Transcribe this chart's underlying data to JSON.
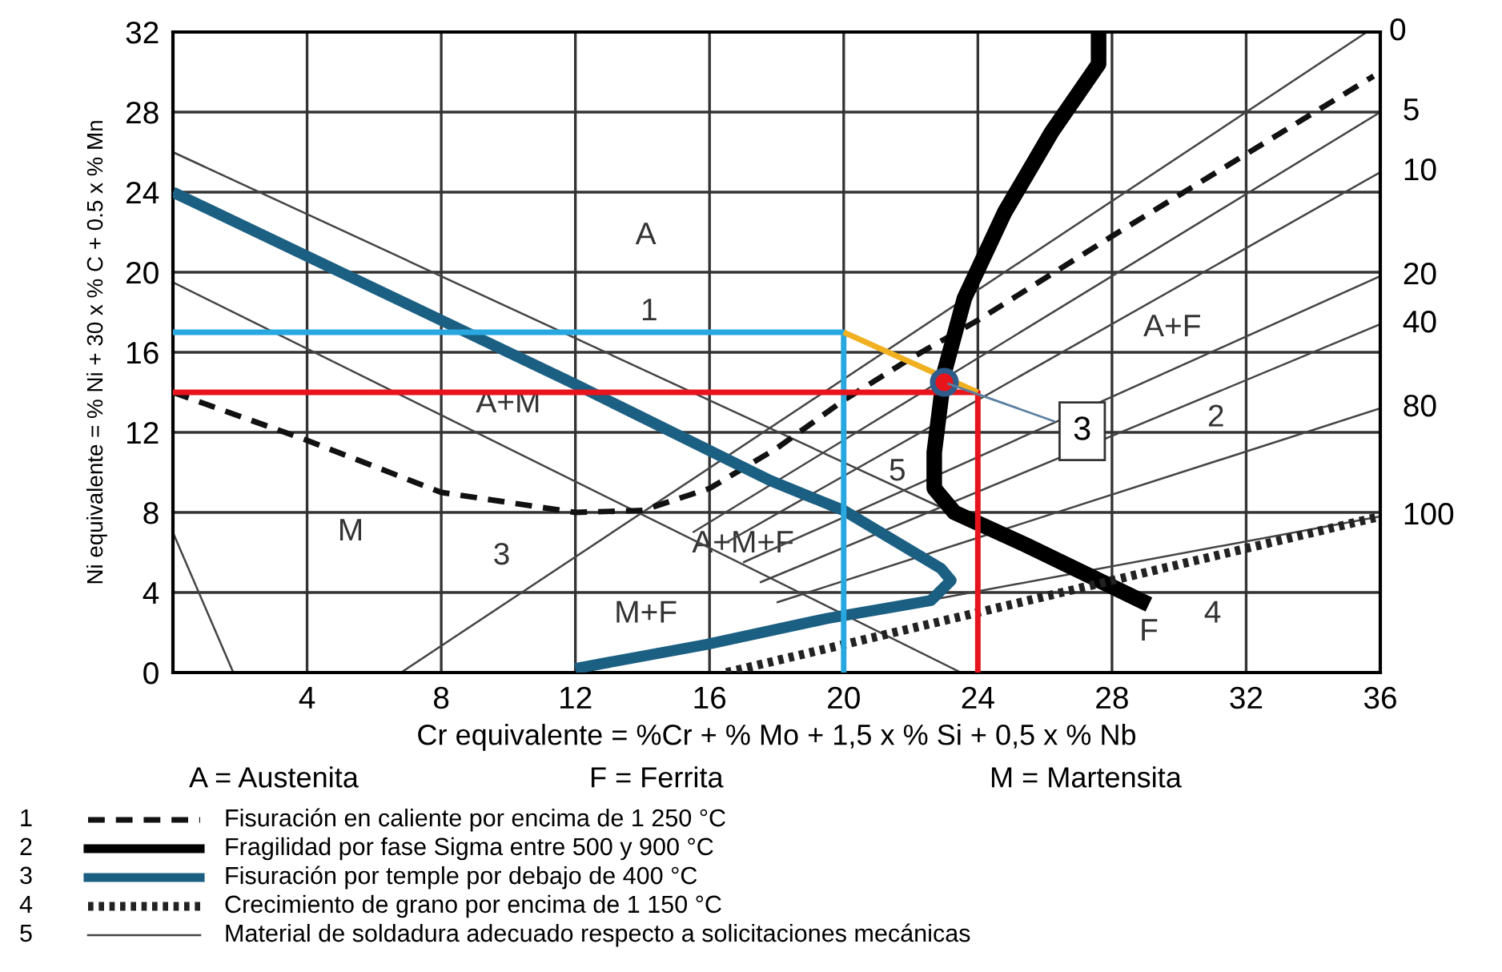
{
  "chart_data": {
    "type": "line",
    "xlabel": "Cr equivalente = %Cr + % Mo + 1,5 x % Si + 0,5 x % Nb",
    "ylabel": "Ni equivalente = % Ni + 30 x % C + 0.5 x % Mn",
    "xlim": [
      0,
      36
    ],
    "ylim": [
      0,
      32
    ],
    "xticks": [
      {
        "value": 0,
        "label": null
      },
      4,
      8,
      12,
      16,
      20,
      24,
      28,
      32,
      36
    ],
    "yticks": [
      0,
      4,
      8,
      12,
      16,
      20,
      24,
      28,
      32
    ],
    "grid": true,
    "legend": "bottom",
    "series": [
      {
        "name": "Fisuración en caliente por encima de 1 250 °C",
        "color": "#111111",
        "line_style": "dashed",
        "x": [
          0,
          4,
          8,
          12,
          14,
          16,
          18,
          20,
          22,
          24,
          28,
          32,
          35.8
        ],
        "values": [
          14,
          11.6,
          9,
          8,
          8.1,
          9.2,
          11.2,
          13.6,
          15.7,
          17.6,
          21.8,
          25.9,
          29.8
        ]
      },
      {
        "name": "Fragilidad por fase Sigma entre 500 y 900 °C",
        "color": "#000000",
        "line_style": "solid",
        "x": [
          27.6,
          27.6,
          26.2,
          24.8,
          23.6,
          23,
          22.7,
          22.7,
          23.3,
          25.4,
          29.1
        ],
        "values": [
          32,
          30.4,
          27,
          23,
          18.7,
          15,
          11,
          9.2,
          8,
          6.4,
          3.4
        ]
      },
      {
        "name": "Fisuración por temple por debajo de 400 °C",
        "color": "#1b5f82",
        "line_style": "solid",
        "x": [
          0,
          12,
          17.8,
          20,
          22.9,
          23.2,
          22.6,
          19.5,
          15.9,
          12
        ],
        "values": [
          24,
          14.4,
          9.6,
          8.1,
          5.2,
          4.6,
          3.6,
          2.7,
          1.4,
          0.2
        ]
      },
      {
        "name": "Crecimiento de grano por encima de 1 150 °C",
        "color": "#222222",
        "line_style": "dotted",
        "x": [
          16.5,
          36
        ],
        "values": [
          0,
          7.8
        ]
      },
      {
        "name": "Material de soldadura adecuado respecto a solicitaciones mecánicas",
        "color": "#444444",
        "line_style": "solid",
        "x": [
          0,
          24
        ],
        "values": [
          26,
          7.4
        ]
      },
      {
        "color": "#444444",
        "line_style": "solid",
        "x": [
          0,
          23.5
        ],
        "values": [
          19.5,
          0
        ]
      },
      {
        "color": "#444444",
        "line_style": "solid",
        "x": [
          0,
          1.8
        ],
        "values": [
          7,
          0
        ]
      },
      {
        "color": "#444444",
        "line_style": "solid",
        "x": [
          6.8,
          35.6
        ],
        "values": [
          0,
          32
        ]
      },
      {
        "color": "#444444",
        "line_style": "solid",
        "x": [
          15.5,
          36
        ],
        "values": [
          7,
          28
        ]
      },
      {
        "color": "#444444",
        "line_style": "solid",
        "x": [
          16.5,
          36
        ],
        "values": [
          6.5,
          25
        ]
      },
      {
        "color": "#444444",
        "line_style": "solid",
        "x": [
          17,
          36
        ],
        "values": [
          5.5,
          19.8
        ]
      },
      {
        "color": "#444444",
        "line_style": "solid",
        "x": [
          17.5,
          36
        ],
        "values": [
          4.5,
          17.4
        ]
      },
      {
        "color": "#444444",
        "line_style": "solid",
        "x": [
          18,
          36
        ],
        "values": [
          3.5,
          13.2
        ]
      },
      {
        "color": "#444444",
        "line_style": "solid",
        "x": [
          19,
          36
        ],
        "values": [
          2.5,
          7.8
        ]
      },
      {
        "color": "#29a8e0",
        "line_style": "solid",
        "x": [
          0,
          20,
          20
        ],
        "values": [
          17,
          17,
          0
        ]
      },
      {
        "color": "#e8141c",
        "line_style": "solid",
        "x": [
          0,
          24,
          24
        ],
        "values": [
          14,
          14,
          0
        ]
      },
      {
        "color": "#f0b020",
        "line_style": "solid",
        "x": [
          20,
          24
        ],
        "values": [
          17,
          14
        ]
      },
      {
        "type": "scatter",
        "color": "#e8141c",
        "marker": "circle",
        "x": [
          23
        ],
        "values": [
          14.5
        ]
      }
    ],
    "annotations": [
      "A = Austenita",
      "F = Ferrita",
      "M = Martensita",
      "1",
      "2",
      "3",
      "4",
      "5",
      "A",
      "1",
      "A+M",
      "M",
      "3",
      "M+F",
      "A+M+F",
      "5",
      "A+F",
      "2",
      "4",
      "F",
      {
        "text": "3",
        "x": 23,
        "y": 14.5
      },
      {
        "text": "0",
        "x": 35.6,
        "y": 32
      },
      {
        "text": "5",
        "x": 36,
        "y": 28
      },
      {
        "text": "10",
        "x": 36,
        "y": 25
      },
      {
        "text": "20",
        "x": 36,
        "y": 19.8
      },
      {
        "text": "40",
        "x": 36,
        "y": 17.4
      },
      {
        "text": "80",
        "x": 36,
        "y": 13.2
      },
      {
        "text": "100",
        "x": 36,
        "y": 7.8
      }
    ]
  }
}
